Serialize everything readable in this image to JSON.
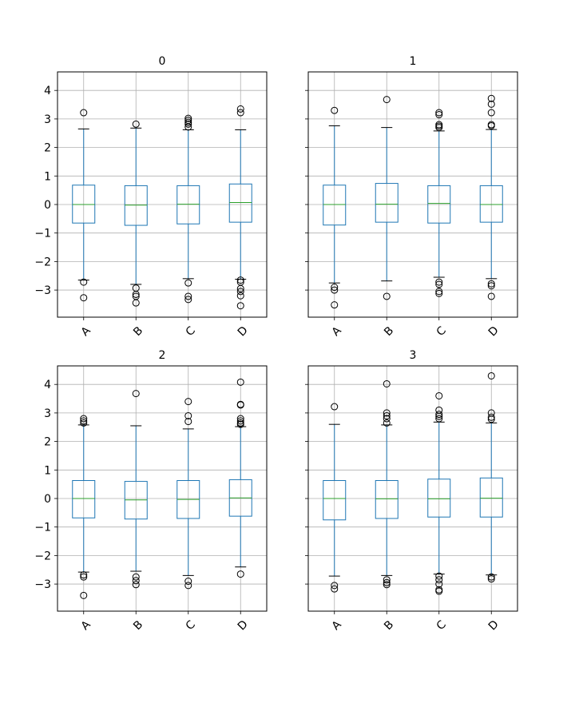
{
  "colors": {
    "box": "#1f77b4",
    "median": "#2ca02c",
    "cap": "#000000",
    "flier": "#000000",
    "grid": "#b0b0b0"
  },
  "chart_data": [
    {
      "type": "box",
      "title": "0",
      "categories": [
        "A",
        "B",
        "C",
        "D"
      ],
      "ylim": [
        -3.95,
        4.65
      ],
      "yticks": [
        -3,
        -2,
        -1,
        0,
        1,
        2,
        3,
        4
      ],
      "grid": true,
      "boxes": [
        {
          "q1": -0.65,
          "median": 0.0,
          "q3": 0.68,
          "whisker_low": -2.65,
          "whisker_high": 2.65,
          "fliers": [
            3.22,
            -2.72,
            -3.27
          ]
        },
        {
          "q1": -0.73,
          "median": -0.02,
          "q3": 0.66,
          "whisker_low": -2.8,
          "whisker_high": 2.68,
          "fliers": [
            2.82,
            -2.93,
            -3.15,
            -3.22,
            -3.45
          ]
        },
        {
          "q1": -0.68,
          "median": 0.01,
          "q3": 0.66,
          "whisker_low": -2.6,
          "whisker_high": 2.62,
          "fliers": [
            2.72,
            2.82,
            2.88,
            2.95,
            3.02,
            -2.75,
            -3.22,
            -3.33
          ]
        },
        {
          "q1": -0.62,
          "median": 0.07,
          "q3": 0.72,
          "whisker_low": -2.62,
          "whisker_high": 2.62,
          "fliers": [
            3.22,
            3.35,
            -2.65,
            -2.72,
            -2.95,
            -3.05,
            -3.2,
            -3.55
          ]
        }
      ]
    },
    {
      "type": "box",
      "title": "1",
      "categories": [
        "A",
        "B",
        "C",
        "D"
      ],
      "ylim": [
        -3.95,
        4.65
      ],
      "yticks": [
        -3,
        -2,
        -1,
        0,
        1,
        2,
        3,
        4
      ],
      "grid": true,
      "boxes": [
        {
          "q1": -0.72,
          "median": 0.0,
          "q3": 0.68,
          "whisker_low": -2.75,
          "whisker_high": 2.76,
          "fliers": [
            3.3,
            -2.9,
            -3.0,
            -3.52
          ]
        },
        {
          "q1": -0.62,
          "median": 0.01,
          "q3": 0.74,
          "whisker_low": -2.68,
          "whisker_high": 2.7,
          "fliers": [
            3.68,
            -3.22
          ]
        },
        {
          "q1": -0.65,
          "median": 0.04,
          "q3": 0.66,
          "whisker_low": -2.55,
          "whisker_high": 2.58,
          "fliers": [
            2.7,
            2.75,
            2.8,
            3.15,
            3.22,
            -2.72,
            -2.8,
            -3.05,
            -3.12
          ]
        },
        {
          "q1": -0.62,
          "median": 0.0,
          "q3": 0.66,
          "whisker_low": -2.6,
          "whisker_high": 2.63,
          "fliers": [
            2.76,
            2.8,
            3.22,
            3.52,
            3.72,
            -2.78,
            -2.85,
            -3.22
          ]
        }
      ]
    },
    {
      "type": "box",
      "title": "2",
      "categories": [
        "A",
        "B",
        "C",
        "D"
      ],
      "ylim": [
        -3.95,
        4.65
      ],
      "yticks": [
        -3,
        -2,
        -1,
        0,
        1,
        2,
        3,
        4
      ],
      "grid": true,
      "boxes": [
        {
          "q1": -0.68,
          "median": 0.0,
          "q3": 0.63,
          "whisker_low": -2.58,
          "whisker_high": 2.58,
          "fliers": [
            2.65,
            2.72,
            2.8,
            -2.68,
            -2.75,
            -3.4
          ]
        },
        {
          "q1": -0.72,
          "median": -0.05,
          "q3": 0.6,
          "whisker_low": -2.55,
          "whisker_high": 2.55,
          "fliers": [
            3.68,
            -2.75,
            -2.88,
            -3.02
          ]
        },
        {
          "q1": -0.7,
          "median": -0.03,
          "q3": 0.63,
          "whisker_low": -2.7,
          "whisker_high": 2.44,
          "fliers": [
            2.7,
            2.9,
            3.4,
            -2.9,
            -3.05
          ]
        },
        {
          "q1": -0.62,
          "median": 0.02,
          "q3": 0.66,
          "whisker_low": -2.4,
          "whisker_high": 2.52,
          "fliers": [
            2.6,
            2.65,
            2.72,
            2.8,
            3.28,
            3.3,
            4.08,
            -2.65
          ]
        }
      ]
    },
    {
      "type": "box",
      "title": "3",
      "categories": [
        "A",
        "B",
        "C",
        "D"
      ],
      "ylim": [
        -3.95,
        4.65
      ],
      "yticks": [
        -3,
        -2,
        -1,
        0,
        1,
        2,
        3,
        4
      ],
      "grid": true,
      "boxes": [
        {
          "q1": -0.75,
          "median": 0.0,
          "q3": 0.63,
          "whisker_low": -2.72,
          "whisker_high": 2.6,
          "fliers": [
            3.22,
            -3.05,
            -3.17
          ]
        },
        {
          "q1": -0.7,
          "median": -0.01,
          "q3": 0.63,
          "whisker_low": -2.7,
          "whisker_high": 2.58,
          "fliers": [
            2.65,
            2.8,
            2.9,
            3.0,
            4.02,
            -2.85,
            -2.95,
            -3.02
          ]
        },
        {
          "q1": -0.65,
          "median": -0.01,
          "q3": 0.68,
          "whisker_low": -2.65,
          "whisker_high": 2.68,
          "fliers": [
            2.8,
            2.88,
            2.95,
            3.1,
            3.6,
            -2.72,
            -2.85,
            -3.0,
            -3.2,
            -3.25
          ]
        },
        {
          "q1": -0.65,
          "median": 0.01,
          "q3": 0.72,
          "whisker_low": -2.68,
          "whisker_high": 2.65,
          "fliers": [
            2.78,
            2.85,
            3.0,
            4.3,
            -2.75,
            -2.82
          ]
        }
      ]
    }
  ]
}
